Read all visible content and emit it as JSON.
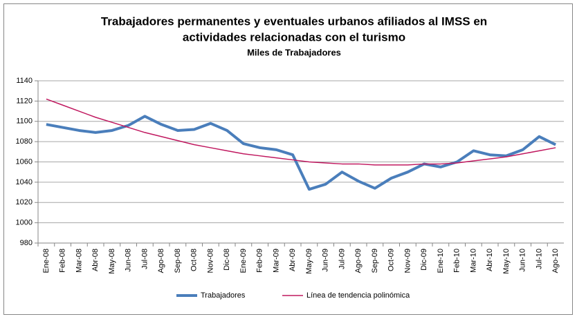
{
  "chart_data": {
    "type": "line",
    "title": [
      "Trabajadores permanentes y eventuales urbanos afiliados al IMSS en",
      "actividades relacionadas con el turismo"
    ],
    "subtitle": "Miles de Trabajadores",
    "categories": [
      "Ene-08",
      "Feb-08",
      "Mar-08",
      "Abr-08",
      "May-08",
      "Jun-08",
      "Jul-08",
      "Ago-08",
      "Sep-08",
      "Oct-08",
      "Nov-08",
      "Dic-08",
      "Ene-09",
      "Feb-09",
      "Mar-09",
      "Abr-09",
      "May-09",
      "Jun-09",
      "Jul-09",
      "Ago-09",
      "Sep-09",
      "Oct-09",
      "Nov-09",
      "Dic-09",
      "Ene-10",
      "Feb-10",
      "Mar-10",
      "Abr-10",
      "May-10",
      "Jun-10",
      "Jul-10",
      "Ago-10"
    ],
    "series": [
      {
        "name": "Trabajadores",
        "color": "#4a7ebb",
        "values": [
          1097,
          1094,
          1091,
          1089,
          1091,
          1096,
          1105,
          1097,
          1091,
          1092,
          1098,
          1091,
          1078,
          1074,
          1072,
          1067,
          1033,
          1038,
          1050,
          1041,
          1034,
          1044,
          1050,
          1058,
          1055,
          1060,
          1071,
          1067,
          1066,
          1072,
          1085,
          1077
        ]
      },
      {
        "name": "Línea de tendencia polinómica",
        "color": "#c0185f",
        "values": [
          1122,
          1116,
          1110,
          1104,
          1099,
          1094,
          1089,
          1085,
          1081,
          1077,
          1074,
          1071,
          1068,
          1066,
          1064,
          1062,
          1060,
          1059,
          1058,
          1058,
          1057,
          1057,
          1057,
          1058,
          1058,
          1059,
          1061,
          1063,
          1065,
          1068,
          1071,
          1074
        ]
      }
    ],
    "ylim": [
      980,
      1140
    ],
    "yticks": [
      980,
      1000,
      1020,
      1040,
      1060,
      1080,
      1100,
      1120,
      1140
    ],
    "grid": true,
    "legend": "bottom"
  }
}
